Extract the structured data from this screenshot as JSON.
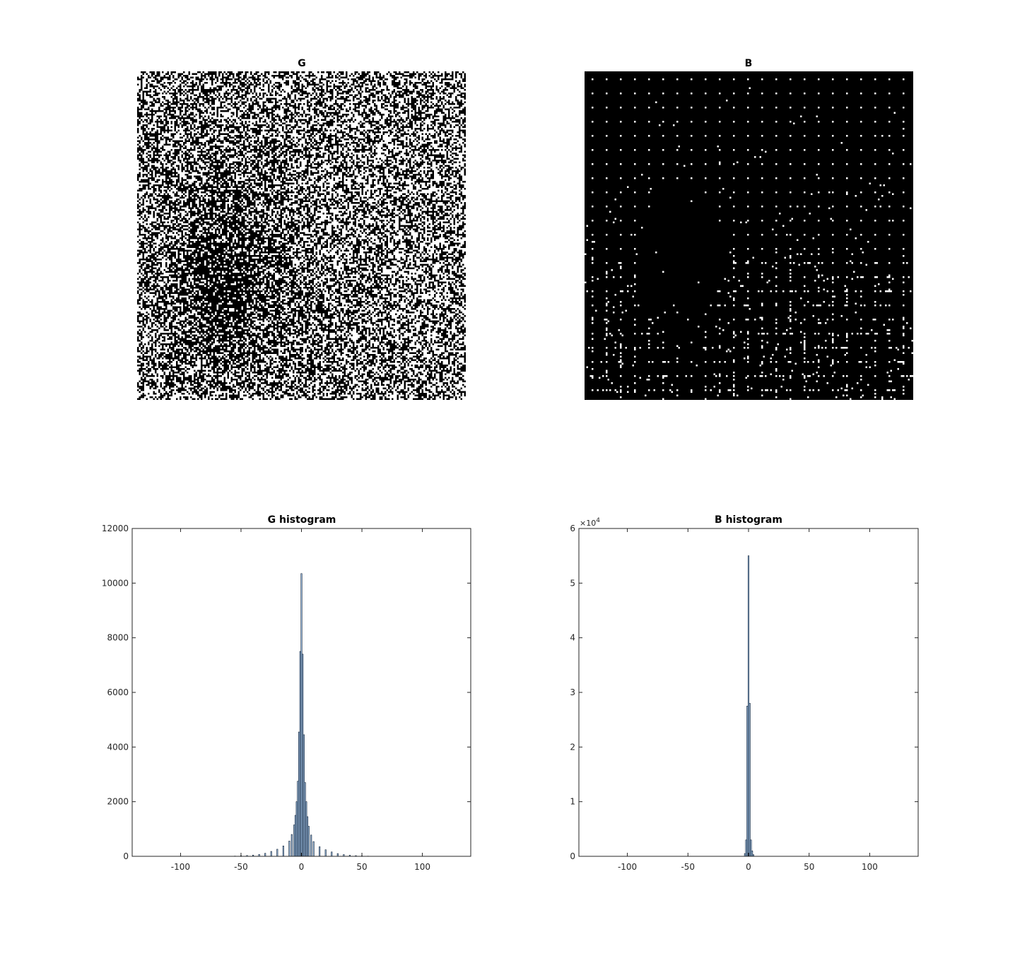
{
  "figure": {
    "background": "#ffffff",
    "panels": [
      {
        "title": "G",
        "kind": "binary-image",
        "foreground": "#ffffff",
        "background": "#000000"
      },
      {
        "title": "B",
        "kind": "binary-image",
        "foreground": "#ffffff",
        "background": "#000000"
      }
    ]
  },
  "chart_data": [
    {
      "type": "bar",
      "title": "G histogram",
      "xlabel": "",
      "ylabel": "",
      "xlim": [
        -140,
        140
      ],
      "ylim": [
        0,
        12000
      ],
      "xticks": [
        "-100",
        "-50",
        "0",
        "50",
        "100"
      ],
      "yticks": [
        "0",
        "2000",
        "4000",
        "6000",
        "8000",
        "10000",
        "12000"
      ],
      "bar_color": "#a6c8ec",
      "edge_color": "#0a1a2e",
      "x": [
        -55,
        -50,
        -45,
        -40,
        -35,
        -30,
        -25,
        -20,
        -15,
        -10,
        -8,
        -6,
        -5,
        -4,
        -3,
        -2,
        -1,
        0,
        1,
        2,
        3,
        4,
        5,
        6,
        8,
        10,
        15,
        20,
        25,
        30,
        35,
        40,
        45,
        50,
        55
      ],
      "values": [
        10,
        20,
        30,
        45,
        70,
        110,
        180,
        260,
        380,
        560,
        800,
        1150,
        1500,
        2000,
        2750,
        4550,
        7500,
        10350,
        7400,
        4450,
        2700,
        2000,
        1450,
        1100,
        780,
        540,
        350,
        240,
        160,
        100,
        65,
        40,
        25,
        15,
        8
      ]
    },
    {
      "type": "bar",
      "title": "B histogram",
      "xlabel": "",
      "ylabel": "",
      "xlim": [
        -140,
        140
      ],
      "ylim": [
        0,
        6
      ],
      "y_exponent_label": "×10",
      "y_exponent": "4",
      "xticks": [
        "-100",
        "-50",
        "0",
        "50",
        "100"
      ],
      "yticks": [
        "0",
        "1",
        "2",
        "3",
        "4",
        "5",
        "6"
      ],
      "bar_color": "#a6c8ec",
      "edge_color": "#0a1a2e",
      "x": [
        -3,
        -2,
        -1,
        0,
        1,
        2,
        3,
        4
      ],
      "values": [
        0.05,
        0.3,
        2.75,
        5.5,
        2.8,
        0.3,
        0.1,
        0.03
      ]
    }
  ]
}
